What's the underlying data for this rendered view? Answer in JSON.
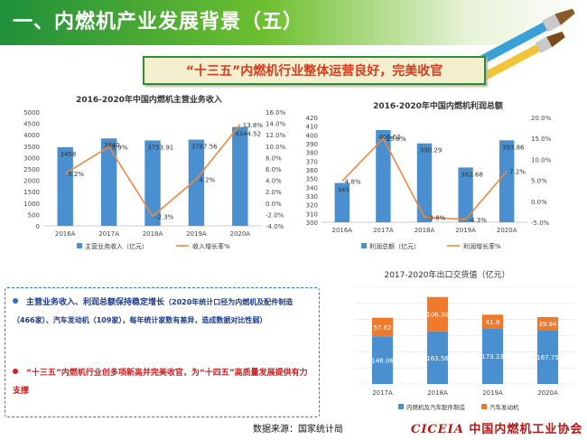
{
  "header": {
    "title": "一、内燃机产业发展背景（五）"
  },
  "banner": {
    "text": "“十三五”内燃机行业整体运营良好，完美收官"
  },
  "colors": {
    "bar": "#4a90d0",
    "line": "#f0873a",
    "bar_top": "#f07a2a",
    "accent_green": "#2e8b3a",
    "red": "#c81e1e",
    "navy": "#1a3a8a"
  },
  "chart_data": [
    {
      "type": "bar",
      "title": "2016-2020年中国内燃机主营业务收入",
      "categories": [
        "2016A",
        "2017A",
        "2018A",
        "2019A",
        "2020A"
      ],
      "series": [
        {
          "name": "主营业务收入（亿元）",
          "kind": "bar",
          "axis": "left",
          "values": [
            3458,
            3840,
            3753.91,
            3787.56,
            4344.52
          ],
          "labels": [
            "3458",
            "3840",
            "3753.91",
            "3787.56",
            "4344.52"
          ]
        },
        {
          "name": "收入增长率%",
          "kind": "line",
          "axis": "right",
          "values": [
            5.2,
            9.9,
            -2.3,
            4.2,
            13.8
          ],
          "labels": [
            "5.2%",
            "9.9%",
            "-2.3%",
            "4.2%",
            "13.8%"
          ]
        }
      ],
      "ylim": [
        0,
        5000
      ],
      "yticks": [
        "0",
        "500",
        "1000",
        "1500",
        "2000",
        "2500",
        "3000",
        "3500",
        "4000",
        "4500",
        "5000"
      ],
      "y2lim": [
        -4,
        16
      ],
      "y2ticks": [
        "-4.0%",
        "-2.0%",
        "0.0%",
        "2.0%",
        "4.0%",
        "6.0%",
        "8.0%",
        "10.0%",
        "12.0%",
        "14.0%",
        "16.0%"
      ],
      "legend": "bottom"
    },
    {
      "type": "bar",
      "title": "2016-2020年中国内燃机利润总额",
      "categories": [
        "2016A",
        "2017A",
        "2018A",
        "2019A",
        "2020A"
      ],
      "series": [
        {
          "name": "利润总额（亿元）",
          "kind": "bar",
          "axis": "left",
          "values": [
            345,
            405.62,
            390.29,
            362.68,
            393.86
          ],
          "labels": [
            "345",
            "405.62",
            "390.29",
            "362.68",
            "393.86"
          ]
        },
        {
          "name": "利润增长率%",
          "kind": "line",
          "axis": "right",
          "values": [
            4.8,
            15.0,
            -3.8,
            -4.3,
            7.2
          ],
          "labels": [
            "4.8%",
            "15.0%",
            "-3.8%",
            "-4.3%",
            "7.2%"
          ]
        }
      ],
      "ylim": [
        300,
        420
      ],
      "yticks": [
        "300",
        "310",
        "320",
        "330",
        "340",
        "350",
        "360",
        "370",
        "380",
        "390",
        "400",
        "410",
        "420"
      ],
      "y2lim": [
        -5,
        20
      ],
      "y2ticks": [
        "-5.0%",
        "0.0%",
        "5.0%",
        "10.0%",
        "15.0%",
        "20.0%"
      ],
      "legend": "bottom"
    },
    {
      "type": "bar",
      "stacked": true,
      "title": "2017-2020年出口交货值（亿元）",
      "categories": [
        "2017A",
        "2018A",
        "2019A",
        "2020A"
      ],
      "series": [
        {
          "name": "内燃机及汽车配件制造",
          "values": [
            148.06,
            163.56,
            173.23,
            167.75
          ],
          "labels": [
            "148.06",
            "163.56",
            "173.23",
            "167.75"
          ]
        },
        {
          "name": "汽车发动机",
          "values": [
            57.62,
            106.36,
            41.8,
            39.94
          ],
          "labels": [
            "57.62",
            "106.36",
            "41.8",
            "39.94"
          ]
        }
      ],
      "ylim": [
        0,
        300
      ],
      "legend": "bottom"
    }
  ],
  "info": {
    "point1_main": "主营业务收入、利润总额保持稳定增长",
    "point1_note": "（2020年统计口径为内燃机及配件制造（466家）、汽车发动机（109家），每年统计家数有差异，造成数据对比性弱）",
    "point2": "“十三五”内燃机行业创多项新高并完美收官，为“十四五”高质量发展提供有力支撑"
  },
  "footer": {
    "source": "数据来源：国家统计局",
    "logo_en": "CICEIA",
    "logo_cn": "中国内燃机工业协会"
  }
}
